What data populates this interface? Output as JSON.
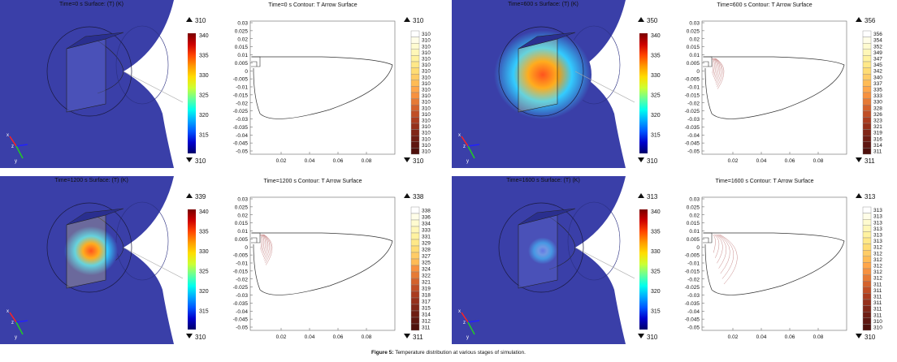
{
  "caption": {
    "label": "Figure 5:",
    "text": "Temperature distribution at various stages of simulation."
  },
  "panels": [
    {
      "surface_title": "Time=0 s   Surface: (T) (K)",
      "contour_title": "Time=0 s   Contour: T  Arrow Surface",
      "surface_max": "310",
      "surface_min": "310",
      "contour_max": "310",
      "contour_min": "310",
      "legend_values": [
        "310",
        "310",
        "310",
        "310",
        "310",
        "310",
        "310",
        "310",
        "310",
        "310",
        "310",
        "310",
        "310",
        "310",
        "310",
        "310",
        "310",
        "310",
        "310",
        "310"
      ],
      "hot_intensity": 0
    },
    {
      "surface_title": "Time=600 s   Surface: (T) (K)",
      "contour_title": "Time=600 s   Contour: T  Arrow Surface",
      "surface_max": "350",
      "surface_min": "310",
      "contour_max": "356",
      "contour_min": "311",
      "legend_values": [
        "356",
        "354",
        "352",
        "349",
        "347",
        "345",
        "342",
        "340",
        "337",
        "335",
        "333",
        "330",
        "328",
        "326",
        "323",
        "321",
        "319",
        "316",
        "314",
        "311"
      ],
      "hot_intensity": 1
    },
    {
      "surface_title": "Time=1200 s   Surface: (T) (K)",
      "contour_title": "Time=1200 s   Contour: T  Arrow Surface",
      "surface_max": "339",
      "surface_min": "310",
      "contour_max": "338",
      "contour_min": "311",
      "legend_values": [
        "338",
        "336",
        "334",
        "333",
        "331",
        "329",
        "328",
        "327",
        "325",
        "324",
        "322",
        "321",
        "319",
        "318",
        "317",
        "315",
        "314",
        "312",
        "311"
      ],
      "hot_intensity": 0.55
    },
    {
      "surface_title": "Time=1600 s   Surface: (T) (K)",
      "contour_title": "Time=1600 s   Contour: T  Arrow Surface",
      "surface_max": "313",
      "surface_min": "310",
      "contour_max": "313",
      "contour_min": "310",
      "legend_values": [
        "313",
        "313",
        "313",
        "313",
        "313",
        "313",
        "312",
        "312",
        "312",
        "312",
        "312",
        "312",
        "311",
        "311",
        "311",
        "311",
        "311",
        "311",
        "310",
        "310"
      ],
      "hot_intensity": 0.08
    }
  ],
  "colorbar_ticks": [
    "340",
    "335",
    "330",
    "325",
    "320",
    "315"
  ],
  "contour_axes": {
    "y_ticks": [
      "0.03",
      "0.025",
      "0.02",
      "0.015",
      "0.01",
      "0.005",
      "0",
      "-0.005",
      "-0.01",
      "-0.015",
      "-0.02",
      "-0.025",
      "-0.03",
      "-0.035",
      "-0.04",
      "-0.045",
      "-0.05"
    ],
    "x_ticks": [
      "0.02",
      "0.04",
      "0.06",
      "0.08"
    ]
  },
  "triad": {
    "x": "x",
    "y": "y",
    "z": "z"
  },
  "colors": {
    "background3d": "#3a3fa8",
    "cone": "#4048b8",
    "contour_line": "#c98a8a",
    "outline": "#333333"
  }
}
